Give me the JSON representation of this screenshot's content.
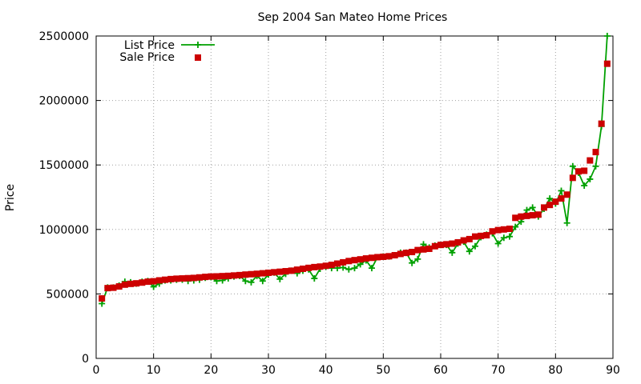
{
  "chart_data": {
    "type": "line",
    "title": "Sep 2004 San Mateo Home Prices",
    "xlabel": "",
    "ylabel": "Price",
    "xlim": [
      0,
      90
    ],
    "ylim": [
      0,
      2500000
    ],
    "x_ticks": [
      0,
      10,
      20,
      30,
      40,
      50,
      60,
      70,
      80,
      90
    ],
    "y_ticks": [
      0,
      500000,
      1000000,
      1500000,
      2000000,
      2500000
    ],
    "x_tick_labels": [
      "0",
      "10",
      "20",
      "30",
      "40",
      "50",
      "60",
      "70",
      "80",
      "90"
    ],
    "y_tick_labels": [
      "0",
      "500000",
      "1000000",
      "1500000",
      "2000000",
      "2500000"
    ],
    "grid": true,
    "legend_position": "top-left",
    "series": [
      {
        "name": "List Price",
        "style": "linespoints",
        "marker": "plus",
        "color": "#00a000",
        "x": [
          1,
          2,
          3,
          4,
          5,
          6,
          7,
          8,
          9,
          10,
          11,
          12,
          13,
          14,
          15,
          16,
          17,
          18,
          19,
          20,
          21,
          22,
          23,
          24,
          25,
          26,
          27,
          28,
          29,
          30,
          31,
          32,
          33,
          34,
          35,
          36,
          37,
          38,
          39,
          40,
          41,
          42,
          43,
          44,
          45,
          46,
          47,
          48,
          49,
          50,
          51,
          52,
          53,
          54,
          55,
          56,
          57,
          58,
          59,
          60,
          61,
          62,
          63,
          64,
          65,
          66,
          67,
          68,
          69,
          70,
          71,
          72,
          73,
          74,
          75,
          76,
          77,
          78,
          79,
          80,
          81,
          82,
          83,
          84,
          85,
          86,
          87,
          88,
          89
        ],
        "y": [
          425000,
          550000,
          550000,
          565000,
          595000,
          590000,
          580000,
          595000,
          600000,
          555000,
          580000,
          605000,
          605000,
          610000,
          610000,
          600000,
          605000,
          610000,
          625000,
          630000,
          600000,
          605000,
          620000,
          635000,
          640000,
          600000,
          590000,
          640000,
          600000,
          650000,
          665000,
          615000,
          655000,
          680000,
          660000,
          680000,
          690000,
          620000,
          695000,
          710000,
          700000,
          700000,
          705000,
          690000,
          700000,
          730000,
          760000,
          700000,
          785000,
          790000,
          790000,
          800000,
          820000,
          820000,
          740000,
          770000,
          885000,
          860000,
          875000,
          880000,
          880000,
          820000,
          890000,
          905000,
          830000,
          870000,
          940000,
          960000,
          970000,
          890000,
          935000,
          945000,
          1020000,
          1060000,
          1150000,
          1170000,
          1100000,
          1160000,
          1240000,
          1200000,
          1300000,
          1050000,
          1490000,
          1440000,
          1340000,
          1390000,
          1490000,
          1800000,
          2500000
        ]
      },
      {
        "name": "Sale Price",
        "style": "points",
        "marker": "square",
        "color": "#cc0000",
        "x": [
          1,
          2,
          3,
          4,
          5,
          6,
          7,
          8,
          9,
          10,
          11,
          12,
          13,
          14,
          15,
          16,
          17,
          18,
          19,
          20,
          21,
          22,
          23,
          24,
          25,
          26,
          27,
          28,
          29,
          30,
          31,
          32,
          33,
          34,
          35,
          36,
          37,
          38,
          39,
          40,
          41,
          42,
          43,
          44,
          45,
          46,
          47,
          48,
          49,
          50,
          51,
          52,
          53,
          54,
          55,
          56,
          57,
          58,
          59,
          60,
          61,
          62,
          63,
          64,
          65,
          66,
          67,
          68,
          69,
          70,
          71,
          72,
          73,
          74,
          75,
          76,
          77,
          78,
          79,
          80,
          81,
          82,
          83,
          84,
          85,
          86,
          87,
          88,
          89
        ],
        "y": [
          465000,
          545000,
          548000,
          558000,
          572000,
          578000,
          582000,
          588000,
          595000,
          598000,
          605000,
          610000,
          615000,
          618000,
          620000,
          622000,
          624000,
          628000,
          632000,
          635000,
          636000,
          638000,
          640000,
          643000,
          646000,
          650000,
          653000,
          656000,
          660000,
          664000,
          668000,
          672000,
          676000,
          680000,
          688000,
          695000,
          702000,
          708000,
          712000,
          718000,
          725000,
          735000,
          745000,
          755000,
          762000,
          768000,
          775000,
          780000,
          785000,
          788000,
          792000,
          800000,
          810000,
          818000,
          825000,
          840000,
          845000,
          850000,
          870000,
          880000,
          885000,
          890000,
          900000,
          915000,
          925000,
          945000,
          950000,
          955000,
          985000,
          995000,
          1000000,
          1005000,
          1090000,
          1100000,
          1105000,
          1110000,
          1115000,
          1170000,
          1190000,
          1215000,
          1240000,
          1270000,
          1400000,
          1450000,
          1455000,
          1535000,
          1600000,
          1820000,
          2285000
        ]
      }
    ]
  }
}
